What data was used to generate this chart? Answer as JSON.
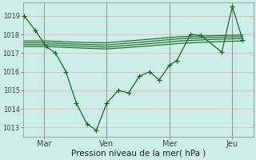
{
  "xlabel": "Pression niveau de la mer( hPa )",
  "xtick_labels": [
    "Mar",
    "Ven",
    "Mer",
    "Jeu"
  ],
  "xtick_positions": [
    1,
    4,
    7,
    10
  ],
  "ytick_values": [
    1013,
    1014,
    1015,
    1016,
    1017,
    1018,
    1019
  ],
  "ylim": [
    1012.5,
    1019.7
  ],
  "xlim": [
    0.0,
    11.0
  ],
  "background_color": "#cceee8",
  "grid_color": "#f0b8b8",
  "line_color": "#1a6b20",
  "main_x": [
    0.05,
    0.6,
    1.1,
    1.55,
    2.05,
    2.55,
    3.05,
    3.5,
    4.0,
    4.55,
    5.05,
    5.55,
    6.05,
    6.5,
    7.0,
    7.35,
    8.0,
    8.5,
    9.5,
    10.0,
    10.5
  ],
  "main_y": [
    1019.0,
    1018.2,
    1017.35,
    1017.0,
    1016.0,
    1014.3,
    1013.2,
    1012.85,
    1014.3,
    1015.0,
    1014.85,
    1015.75,
    1016.0,
    1015.55,
    1016.35,
    1016.6,
    1018.0,
    1017.95,
    1017.05,
    1019.5,
    1017.7
  ],
  "smooth_lines": [
    {
      "x": [
        0.05,
        1.1,
        2.5,
        4.0,
        6.0,
        7.5,
        9.0,
        10.5
      ],
      "y": [
        1017.35,
        1017.35,
        1017.28,
        1017.22,
        1017.38,
        1017.52,
        1017.6,
        1017.65
      ]
    },
    {
      "x": [
        0.05,
        1.1,
        2.5,
        4.0,
        6.0,
        7.5,
        9.0,
        10.5
      ],
      "y": [
        1017.45,
        1017.45,
        1017.38,
        1017.32,
        1017.5,
        1017.65,
        1017.73,
        1017.78
      ]
    },
    {
      "x": [
        0.05,
        1.1,
        2.5,
        4.0,
        6.0,
        7.5,
        9.0,
        10.5
      ],
      "y": [
        1017.55,
        1017.55,
        1017.48,
        1017.43,
        1017.62,
        1017.77,
        1017.84,
        1017.88
      ]
    },
    {
      "x": [
        0.05,
        1.1,
        2.5,
        4.0,
        6.0,
        7.5,
        9.0,
        10.5
      ],
      "y": [
        1017.65,
        1017.65,
        1017.58,
        1017.55,
        1017.74,
        1017.88,
        1017.93,
        1017.97
      ]
    }
  ],
  "vline_x": [
    1,
    4,
    7,
    10
  ]
}
